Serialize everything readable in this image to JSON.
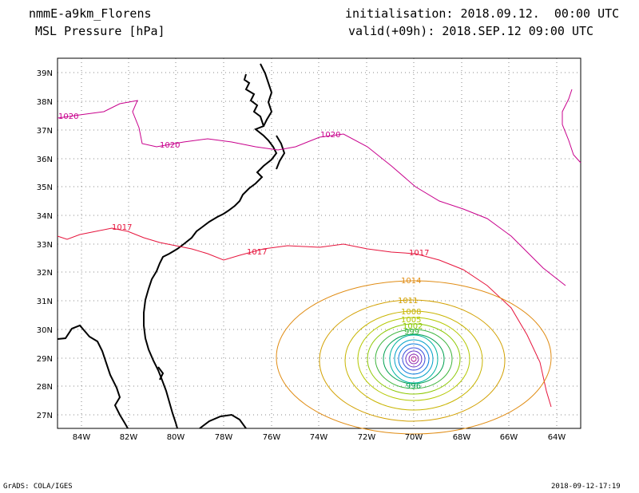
{
  "header": {
    "model": "nmmE-a9km_Florens",
    "field": "MSL Pressure [hPa]",
    "init": "initialisation: 2018.09.12.  00:00 UTC",
    "valid": "valid(+09h): 2018.SEP.12 09:00 UTC"
  },
  "axes": {
    "lat_labels": [
      "39N",
      "38N",
      "37N",
      "36N",
      "35N",
      "34N",
      "33N",
      "32N",
      "31N",
      "30N",
      "29N",
      "28N",
      "27N"
    ],
    "lon_labels": [
      "84W",
      "82W",
      "80W",
      "78W",
      "76W",
      "74W",
      "72W",
      "70W",
      "68W",
      "66W",
      "64W"
    ]
  },
  "contours": {
    "labels": [
      {
        "text": "1020",
        "color": "#c8008c"
      },
      {
        "text": "1020",
        "color": "#c8008c"
      },
      {
        "text": "1020",
        "color": "#c8008c"
      },
      {
        "text": "1017",
        "color": "#e6143c"
      },
      {
        "text": "1017",
        "color": "#e6143c"
      },
      {
        "text": "1017",
        "color": "#e6143c"
      },
      {
        "text": "1014",
        "color": "#e08c14"
      },
      {
        "text": "1011",
        "color": "#d2a000"
      },
      {
        "text": "1008",
        "color": "#c8b400"
      },
      {
        "text": "1005",
        "color": "#b4c800"
      },
      {
        "text": "1002",
        "color": "#8cc800"
      },
      {
        "text": "999",
        "color": "#3cb43c"
      },
      {
        "text": "996",
        "color": "#00a050"
      }
    ]
  },
  "footer": {
    "left": "GrADS: COLA/IGES",
    "right": "2018-09-12-17:19"
  }
}
